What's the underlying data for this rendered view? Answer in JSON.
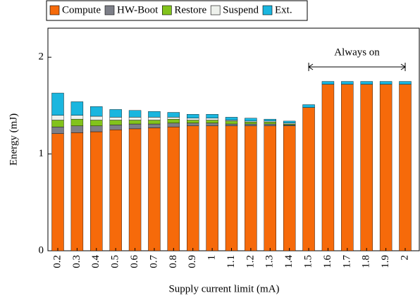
{
  "chart_data": {
    "type": "stacked_bar",
    "x_label": "Supply current limit (mA)",
    "y_label": "Energy (mJ)",
    "categories": [
      "0.2",
      "0.3",
      "0.4",
      "0.5",
      "0.6",
      "0.7",
      "0.8",
      "0.9",
      "1",
      "1.1",
      "1.2",
      "1.3",
      "1.4",
      "1.5",
      "1.6",
      "1.7",
      "1.8",
      "1.9",
      "2"
    ],
    "series": [
      {
        "name": "Compute",
        "color": "#f66a0a",
        "values": [
          1.21,
          1.22,
          1.23,
          1.25,
          1.26,
          1.27,
          1.28,
          1.29,
          1.29,
          1.29,
          1.29,
          1.29,
          1.29,
          1.48,
          1.72,
          1.72,
          1.72,
          1.72,
          1.72
        ]
      },
      {
        "name": "HW-Boot",
        "color": "#7d7f88",
        "values": [
          0.07,
          0.07,
          0.06,
          0.05,
          0.05,
          0.04,
          0.04,
          0.03,
          0.03,
          0.02,
          0.02,
          0.02,
          0.01,
          0,
          0,
          0,
          0,
          0,
          0
        ]
      },
      {
        "name": "Restore",
        "color": "#82c31c",
        "values": [
          0.07,
          0.07,
          0.06,
          0.05,
          0.04,
          0.04,
          0.04,
          0.03,
          0.03,
          0.03,
          0.02,
          0.02,
          0.01,
          0,
          0,
          0,
          0,
          0,
          0
        ]
      },
      {
        "name": "Suspend",
        "color": "#eef1ec",
        "values": [
          0.05,
          0.04,
          0.04,
          0.03,
          0.03,
          0.03,
          0.02,
          0.02,
          0.02,
          0.01,
          0.01,
          0.01,
          0.01,
          0,
          0,
          0,
          0,
          0,
          0
        ]
      },
      {
        "name": "Ext.",
        "color": "#1ab6df",
        "values": [
          0.23,
          0.14,
          0.1,
          0.08,
          0.07,
          0.06,
          0.05,
          0.04,
          0.04,
          0.03,
          0.03,
          0.02,
          0.02,
          0.03,
          0.03,
          0.03,
          0.03,
          0.03,
          0.03
        ]
      }
    ],
    "ylim": [
      0,
      2.3
    ],
    "yticks": [
      0,
      1,
      2
    ],
    "annotations": [
      {
        "text": "Always on",
        "from": "1.5",
        "to": "2"
      }
    ]
  }
}
